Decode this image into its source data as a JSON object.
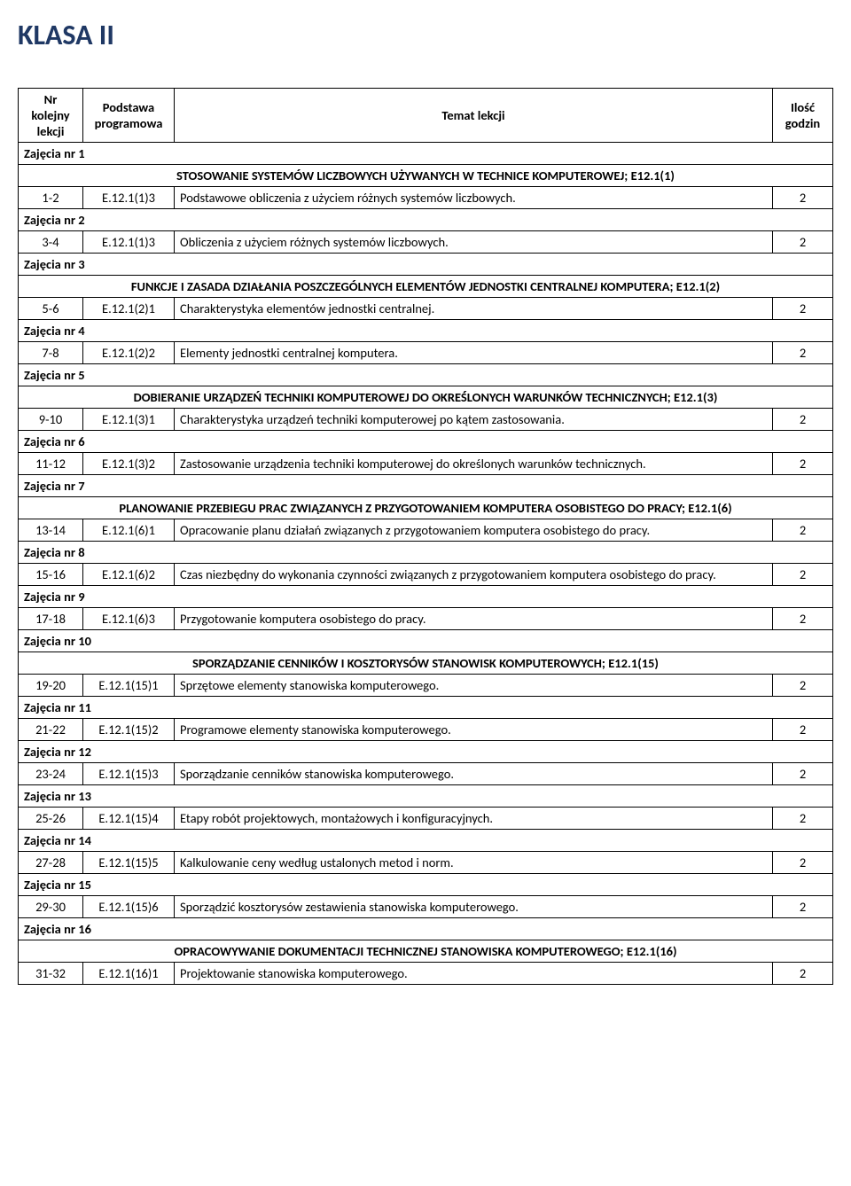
{
  "title": "KLASA II",
  "columns": {
    "nr": "Nr kolejny lekcji",
    "podstawa": "Podstawa programowa",
    "temat": "Temat lekcji",
    "ilosc": "Ilość godzin"
  },
  "rows": [
    {
      "type": "session",
      "label": "Zajęcia nr 1"
    },
    {
      "type": "section",
      "text": "STOSOWANIE SYSTEMÓW LICZBOWYCH UŻYWANYCH W TECHNICE KOMPUTEROWEJ; E12.1(1)"
    },
    {
      "type": "lesson",
      "nr": "1-2",
      "code": "E.12.1(1)3",
      "topic": "Podstawowe obliczenia z użyciem różnych systemów liczbowych.",
      "hours": "2"
    },
    {
      "type": "session",
      "label": "Zajęcia nr 2"
    },
    {
      "type": "lesson",
      "nr": "3-4",
      "code": "E.12.1(1)3",
      "topic": "Obliczenia z użyciem różnych systemów liczbowych.",
      "hours": "2"
    },
    {
      "type": "session",
      "label": "Zajęcia nr 3"
    },
    {
      "type": "section",
      "text": "FUNKCJE I ZASADA DZIAŁANIA POSZCZEGÓLNYCH ELEMENTÓW JEDNOSTKI CENTRALNEJ KOMPUTERA; E12.1(2)"
    },
    {
      "type": "lesson",
      "nr": "5-6",
      "code": "E.12.1(2)1",
      "topic": "Charakterystyka elementów jednostki centralnej.",
      "hours": "2"
    },
    {
      "type": "session",
      "label": "Zajęcia nr 4"
    },
    {
      "type": "lesson",
      "nr": "7-8",
      "code": "E.12.1(2)2",
      "topic": "Elementy jednostki centralnej komputera.",
      "hours": "2"
    },
    {
      "type": "session",
      "label": "Zajęcia nr 5"
    },
    {
      "type": "section",
      "text": "DOBIERANIE URZĄDZEŃ TECHNIKI KOMPUTEROWEJ DO OKREŚLONYCH WARUNKÓW TECHNICZNYCH; E12.1(3)"
    },
    {
      "type": "lesson",
      "nr": "9-10",
      "code": "E.12.1(3)1",
      "topic": "Charakterystyka  urządzeń techniki komputerowej po kątem zastosowania.",
      "hours": "2"
    },
    {
      "type": "session",
      "label": "Zajęcia nr 6"
    },
    {
      "type": "lesson",
      "nr": "11-12",
      "code": "E.12.1(3)2",
      "topic": "Zastosowanie urządzenia techniki komputerowej do określonych warunków technicznych.",
      "hours": "2"
    },
    {
      "type": "session",
      "label": "Zajęcia nr 7"
    },
    {
      "type": "section",
      "text": "PLANOWANIE PRZEBIEGU PRAC ZWIĄZANYCH Z PRZYGOTOWANIEM KOMPUTERA OSOBISTEGO DO PRACY; E12.1(6)"
    },
    {
      "type": "lesson",
      "nr": "13-14",
      "code": "E.12.1(6)1",
      "topic": "Opracowanie planu działań związanych z przygotowaniem komputera osobistego do pracy.",
      "hours": "2"
    },
    {
      "type": "session",
      "label": "Zajęcia nr 8"
    },
    {
      "type": "lesson",
      "nr": "15-16",
      "code": "E.12.1(6)2",
      "topic": "Czas niezbędny do wykonania czynności związanych z przygotowaniem komputera osobistego do pracy.",
      "hours": "2"
    },
    {
      "type": "session",
      "label": "Zajęcia nr 9"
    },
    {
      "type": "lesson",
      "nr": "17-18",
      "code": "E.12.1(6)3",
      "topic": "Przygotowanie komputera osobistego do pracy.",
      "hours": "2"
    },
    {
      "type": "session",
      "label": "Zajęcia nr 10"
    },
    {
      "type": "section",
      "text": "SPORZĄDZANIE CENNIKÓW I KOSZTORYSÓW STANOWISK KOMPUTEROWYCH; E12.1(15)"
    },
    {
      "type": "lesson",
      "nr": "19-20",
      "code": "E.12.1(15)1",
      "topic": "Sprzętowe elementy stanowiska komputerowego.",
      "hours": "2"
    },
    {
      "type": "session",
      "label": "Zajęcia nr 11"
    },
    {
      "type": "lesson",
      "nr": "21-22",
      "code": "E.12.1(15)2",
      "topic": "Programowe elementy stanowiska komputerowego.",
      "hours": "2"
    },
    {
      "type": "session",
      "label": "Zajęcia nr 12"
    },
    {
      "type": "lesson",
      "nr": "23-24",
      "code": "E.12.1(15)3",
      "topic": "Sporządzanie cenników stanowiska komputerowego.",
      "hours": "2"
    },
    {
      "type": "session",
      "label": "Zajęcia nr 13"
    },
    {
      "type": "lesson",
      "nr": "25-26",
      "code": "E.12.1(15)4",
      "topic": "Etapy robót projektowych, montażowych i konfiguracyjnych.",
      "hours": "2"
    },
    {
      "type": "session",
      "label": "Zajęcia nr 14"
    },
    {
      "type": "lesson",
      "nr": "27-28",
      "code": "E.12.1(15)5",
      "topic": "Kalkulowanie ceny według ustalonych metod i norm.",
      "hours": "2"
    },
    {
      "type": "session",
      "label": "Zajęcia nr 15"
    },
    {
      "type": "lesson",
      "nr": "29-30",
      "code": "E.12.1(15)6",
      "topic": "Sporządzić kosztorysów zestawienia stanowiska komputerowego.",
      "hours": "2"
    },
    {
      "type": "session",
      "label": "Zajęcia nr 16"
    },
    {
      "type": "section",
      "text": "OPRACOWYWANIE DOKUMENTACJI TECHNICZNEJ STANOWISKA KOMPUTEROWEGO; E12.1(16)"
    },
    {
      "type": "lesson",
      "nr": "31-32",
      "code": "E.12.1(16)1",
      "topic": "Projektowanie stanowiska komputerowego.",
      "hours": "2"
    }
  ]
}
